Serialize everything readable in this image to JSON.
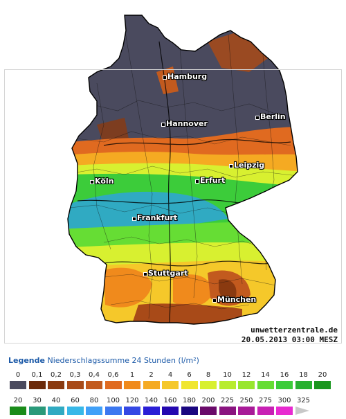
{
  "map": {
    "cities": [
      {
        "name": "Hamburg",
        "id": "hamburg"
      },
      {
        "name": "Berlin",
        "id": "berlin"
      },
      {
        "name": "Hannover",
        "id": "hannover"
      },
      {
        "name": "Leipzig",
        "id": "leipzig"
      },
      {
        "name": "Köln",
        "id": "koeln"
      },
      {
        "name": "Erfurt",
        "id": "erfurt"
      },
      {
        "name": "Frankfurt",
        "id": "frankfurt"
      },
      {
        "name": "Stuttgart",
        "id": "stuttgart"
      },
      {
        "name": "München",
        "id": "muenchen"
      }
    ],
    "source": "unwetterzentrale.de",
    "timestamp": "20.05.2013 03:00 MESZ"
  },
  "legend": {
    "title_bold": "Legende",
    "title_rest": "Niederschlagssumme 24 Stunden",
    "unit": "(l/m²)",
    "row1": {
      "labels": [
        "0",
        "0,1",
        "0,2",
        "0,3",
        "0,4",
        "0,6",
        "1",
        "2",
        "4",
        "6",
        "8",
        "10",
        "12",
        "14",
        "16",
        "18",
        "20"
      ],
      "colors": [
        "#4a4a5e",
        "#6b2a0a",
        "#8a3a10",
        "#a84a18",
        "#c25a1e",
        "#e06a20",
        "#f08a1c",
        "#f5aa22",
        "#f5c82a",
        "#f0e630",
        "#d8f030",
        "#b8ec30",
        "#98e62e",
        "#66dd34",
        "#3ccc3a",
        "#28b030",
        "#1a961e"
      ]
    },
    "row2": {
      "labels": [
        "20",
        "30",
        "40",
        "60",
        "80",
        "100",
        "120",
        "140",
        "160",
        "180",
        "200",
        "225",
        "250",
        "275",
        "300",
        "325"
      ],
      "colors": [
        "#1a8c1a",
        "#2a9a7a",
        "#30aac2",
        "#38b8e8",
        "#40a0f8",
        "#3c78f0",
        "#3448e4",
        "#2a1ed6",
        "#2408b0",
        "#1a0680",
        "#6a0a6a",
        "#8a1480",
        "#a81a98",
        "#c820b4",
        "#e82ad0",
        "#c8c8c8"
      ]
    }
  }
}
